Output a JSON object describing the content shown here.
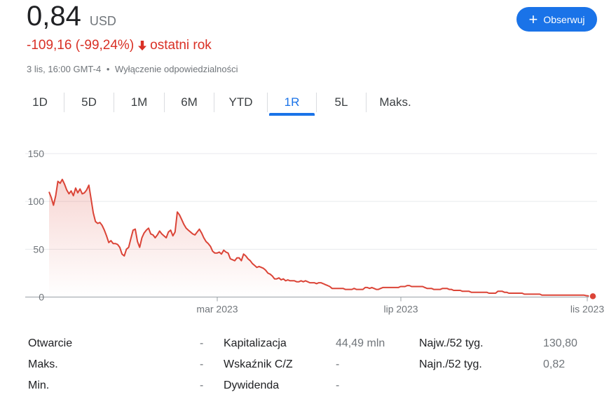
{
  "header": {
    "price": "0,84",
    "currency": "USD",
    "change": "-109,16 (-99,24%)",
    "period": "ostatni rok",
    "timestamp": "3 lis, 16:00 GMT-4",
    "separator": "•",
    "disclaimer": "Wyłączenie odpowiedzialności",
    "follow_label": "Obserwuj"
  },
  "colors": {
    "negative": "#d93025",
    "accent": "#1a73e8",
    "line": "#db4437"
  },
  "tabs": [
    {
      "label": "1D",
      "active": false
    },
    {
      "label": "5D",
      "active": false
    },
    {
      "label": "1M",
      "active": false
    },
    {
      "label": "6M",
      "active": false
    },
    {
      "label": "YTD",
      "active": false
    },
    {
      "label": "1R",
      "active": true
    },
    {
      "label": "5L",
      "active": false
    },
    {
      "label": "Maks.",
      "active": false
    }
  ],
  "chart_data": {
    "type": "area",
    "title": "",
    "xlabel": "",
    "ylabel": "",
    "ylim": [
      0,
      150
    ],
    "yticks": [
      0,
      50,
      100,
      150
    ],
    "grid": true,
    "xticks": [
      "mar 2023",
      "lip 2023",
      "lis 2023"
    ],
    "series": [
      {
        "values": [
          110,
          104,
          96,
          106,
          121,
          119,
          123,
          118,
          112,
          108,
          111,
          106,
          114,
          109,
          113,
          108,
          109,
          112,
          117,
          103,
          88,
          79,
          77,
          78,
          75,
          70,
          64,
          57,
          59,
          56,
          56,
          55,
          52,
          45,
          43,
          50,
          52,
          61,
          70,
          71,
          58,
          52,
          62,
          67,
          70,
          72,
          66,
          65,
          62,
          65,
          69,
          66,
          64,
          62,
          68,
          70,
          64,
          68,
          89,
          86,
          81,
          76,
          72,
          70,
          68,
          66,
          65,
          68,
          71,
          67,
          62,
          58,
          56,
          53,
          48,
          46,
          46,
          47,
          45,
          49,
          47,
          46,
          40,
          39,
          38,
          41,
          41,
          38,
          45,
          43,
          40,
          38,
          35,
          33,
          31,
          32,
          31,
          30,
          28,
          25,
          24,
          22,
          19,
          19,
          20,
          18,
          19,
          17,
          18,
          17,
          17,
          17,
          16,
          16,
          17,
          16,
          17,
          16,
          15,
          15,
          15,
          14,
          15,
          15,
          14,
          13,
          12,
          11,
          9,
          9,
          9,
          9,
          9,
          9,
          8,
          8,
          8,
          8,
          9,
          8,
          8,
          8,
          8,
          10,
          10,
          9,
          10,
          9,
          8,
          8,
          9,
          10,
          10,
          10,
          10,
          10,
          10,
          10,
          10,
          11,
          11,
          11,
          12,
          12,
          11,
          11,
          11,
          11,
          11,
          11,
          10,
          9,
          9,
          9,
          8,
          8,
          8,
          8,
          9,
          9,
          9,
          8,
          8,
          7,
          7,
          7,
          7,
          6,
          6,
          6,
          6,
          5,
          5,
          5,
          5,
          5,
          5,
          5,
          5,
          4,
          4,
          4,
          4,
          6,
          6,
          6,
          5,
          5,
          4,
          4,
          4,
          4,
          4,
          4,
          4,
          3,
          3,
          3,
          3,
          3,
          3,
          3,
          3,
          2,
          2,
          2,
          2,
          2,
          2,
          2,
          2,
          2,
          2,
          2,
          2,
          2,
          2,
          2,
          2,
          2,
          2,
          2,
          2,
          1.5,
          1.2,
          1.0,
          0.84
        ]
      }
    ]
  },
  "stats": {
    "col1": [
      {
        "label": "Otwarcie",
        "value": "-"
      },
      {
        "label": "Maks.",
        "value": "-"
      },
      {
        "label": "Min.",
        "value": "-"
      }
    ],
    "col2": [
      {
        "label": "Kapitalizacja",
        "value": "44,49 mln"
      },
      {
        "label": "Wskaźnik C/Z",
        "value": "-"
      },
      {
        "label": "Dywidenda",
        "value": "-"
      }
    ],
    "col3": [
      {
        "label": "Najw./52 tyg.",
        "value": "130,80"
      },
      {
        "label": "Najn./52 tyg.",
        "value": "0,82"
      }
    ]
  }
}
